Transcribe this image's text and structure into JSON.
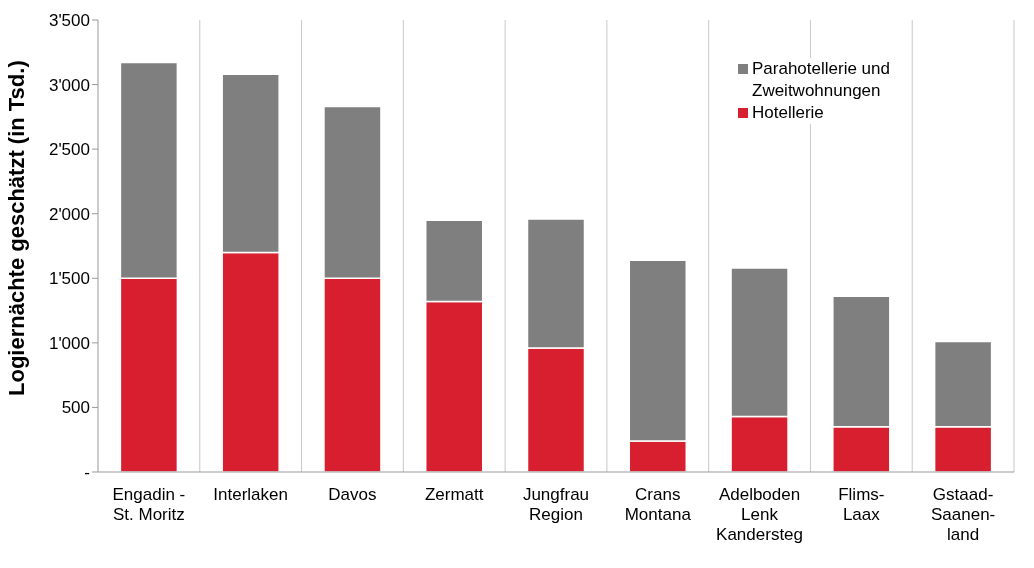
{
  "chart_data": {
    "type": "bar",
    "stacked": true,
    "ylabel": "Logiernächte geschätzt (in Tsd.)",
    "categories": [
      "Engadin -\nSt. Moritz",
      "Interlaken",
      "Davos",
      "Zermatt",
      "Jungfrau\nRegion",
      "Crans\nMontana",
      "Adelboden\nLenk\nKandersteg",
      "Flims-\nLaax",
      "Gstaad-\nSaanen-\nland"
    ],
    "series": [
      {
        "name": "Hotellerie",
        "color": "#d71f2f",
        "values": [
          1500,
          1700,
          1500,
          1320,
          960,
          240,
          430,
          350,
          350
        ]
      },
      {
        "name": "Parahotellerie und\nZweitwohnungen",
        "color": "#7f7f7f",
        "values": [
          1670,
          1380,
          1330,
          630,
          1000,
          1400,
          1150,
          1010,
          660
        ]
      }
    ],
    "ylim": [
      0,
      3500
    ],
    "yticks": [
      {
        "value": 0,
        "label": "-"
      },
      {
        "value": 500,
        "label": "500"
      },
      {
        "value": 1000,
        "label": "1'000"
      },
      {
        "value": 1500,
        "label": "1'500"
      },
      {
        "value": 2000,
        "label": "2'000"
      },
      {
        "value": 2500,
        "label": "2'500"
      },
      {
        "value": 3000,
        "label": "3'000"
      },
      {
        "value": 3500,
        "label": "3'500"
      }
    ],
    "grid": "x",
    "legend": "top right"
  }
}
